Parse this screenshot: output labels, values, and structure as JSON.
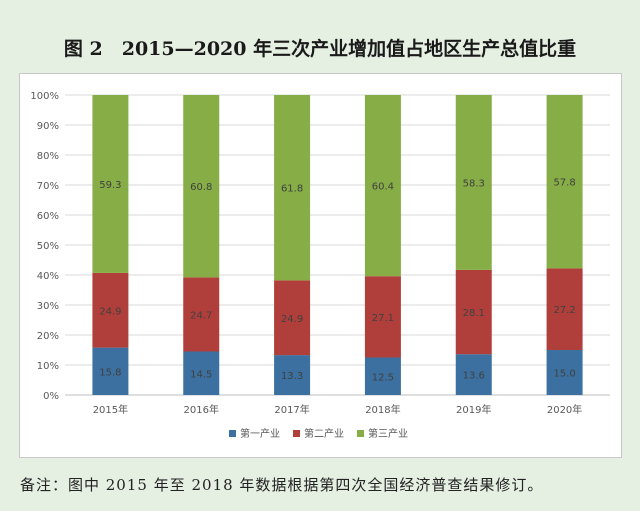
{
  "title": "图 2　2015—2020 年三次产业增加值占地区生产总值比重",
  "footnote": "备注：图中 2015 年至 2018 年数据根据第四次全国经济普查结果修订。",
  "chart_data": {
    "type": "bar",
    "stacked": true,
    "categories": [
      "2015年",
      "2016年",
      "2017年",
      "2018年",
      "2019年",
      "2020年"
    ],
    "series": [
      {
        "name": "第一产业",
        "color": "#3b70a0",
        "values": [
          15.8,
          14.5,
          13.3,
          12.5,
          13.6,
          15.0
        ]
      },
      {
        "name": "第二产业",
        "color": "#b03f3b",
        "values": [
          24.9,
          24.7,
          24.9,
          27.1,
          28.1,
          27.2
        ]
      },
      {
        "name": "第三产业",
        "color": "#87ae46",
        "values": [
          59.3,
          60.8,
          61.8,
          60.4,
          58.3,
          57.8
        ]
      }
    ],
    "y_ticks": [
      "0%",
      "10%",
      "20%",
      "30%",
      "40%",
      "50%",
      "60%",
      "70%",
      "80%",
      "90%",
      "100%"
    ],
    "ylim": [
      0,
      100
    ],
    "grid": true,
    "legend_position": "bottom"
  }
}
